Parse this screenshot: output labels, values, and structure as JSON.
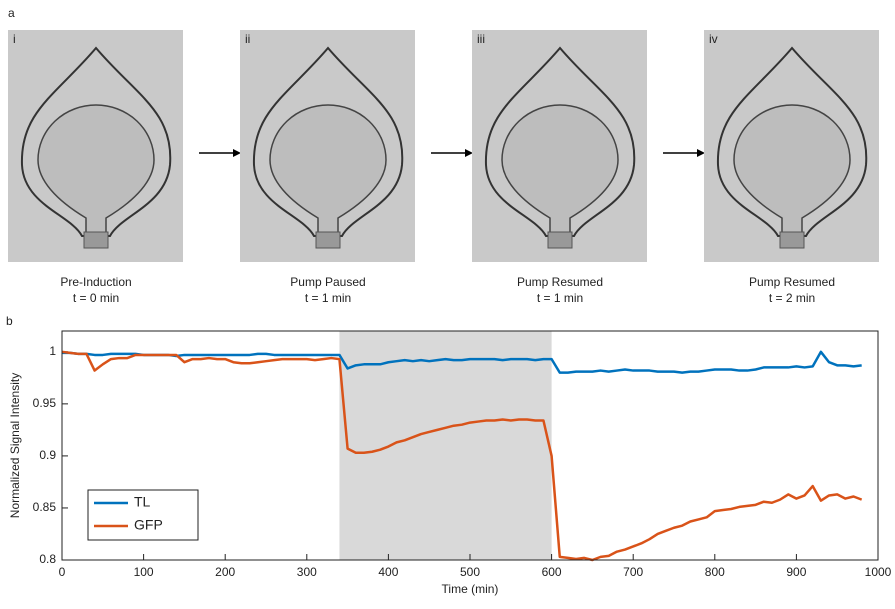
{
  "panel_a": {
    "label": "a",
    "panels": [
      {
        "numeral": "i",
        "caption": [
          "Pre-Induction",
          "t = 0 min"
        ]
      },
      {
        "numeral": "ii",
        "caption": [
          "Pump Paused",
          "t = 1 min"
        ]
      },
      {
        "numeral": "iii",
        "caption": [
          "Pump Resumed",
          "t = 1 min"
        ]
      },
      {
        "numeral": "iv",
        "caption": [
          "Pump Resumed",
          "t = 2 min"
        ]
      }
    ]
  },
  "chart_data": {
    "type": "line",
    "panel_label": "b",
    "xlabel": "Time (min)",
    "ylabel": "Normalized Signal Intensity",
    "x": [
      0,
      10,
      20,
      30,
      40,
      50,
      60,
      70,
      80,
      90,
      100,
      110,
      120,
      130,
      140,
      150,
      160,
      170,
      180,
      190,
      200,
      210,
      220,
      230,
      240,
      250,
      260,
      270,
      280,
      290,
      300,
      310,
      320,
      330,
      340,
      350,
      360,
      370,
      380,
      390,
      400,
      410,
      420,
      430,
      440,
      450,
      460,
      470,
      480,
      490,
      500,
      510,
      520,
      530,
      540,
      550,
      560,
      570,
      580,
      590,
      600,
      610,
      620,
      630,
      640,
      650,
      660,
      670,
      680,
      690,
      700,
      710,
      720,
      730,
      740,
      750,
      760,
      770,
      780,
      790,
      800,
      810,
      820,
      830,
      840,
      850,
      860,
      870,
      880,
      890,
      900,
      910,
      920,
      930,
      940,
      950,
      960,
      970,
      980
    ],
    "series": [
      {
        "name": "TL",
        "color": "#0072bd",
        "values": [
          0.999,
          0.999,
          0.998,
          0.998,
          0.997,
          0.997,
          0.998,
          0.998,
          0.998,
          0.998,
          0.997,
          0.997,
          0.997,
          0.997,
          0.996,
          0.997,
          0.997,
          0.997,
          0.997,
          0.997,
          0.997,
          0.997,
          0.997,
          0.997,
          0.998,
          0.998,
          0.997,
          0.997,
          0.997,
          0.997,
          0.997,
          0.997,
          0.997,
          0.997,
          0.997,
          0.984,
          0.987,
          0.988,
          0.988,
          0.988,
          0.99,
          0.991,
          0.992,
          0.991,
          0.992,
          0.991,
          0.992,
          0.993,
          0.992,
          0.992,
          0.993,
          0.993,
          0.993,
          0.993,
          0.992,
          0.993,
          0.993,
          0.993,
          0.992,
          0.993,
          0.993,
          0.98,
          0.98,
          0.981,
          0.981,
          0.981,
          0.982,
          0.981,
          0.982,
          0.983,
          0.982,
          0.982,
          0.982,
          0.981,
          0.981,
          0.981,
          0.98,
          0.981,
          0.981,
          0.982,
          0.983,
          0.983,
          0.983,
          0.982,
          0.982,
          0.983,
          0.985,
          0.985,
          0.985,
          0.985,
          0.986,
          0.985,
          0.986,
          1.0,
          0.99,
          0.987,
          0.987,
          0.986,
          0.987
        ]
      },
      {
        "name": "GFP",
        "color": "#d95319",
        "values": [
          1.0,
          0.999,
          0.998,
          0.998,
          0.982,
          0.988,
          0.993,
          0.994,
          0.994,
          0.997,
          0.997,
          0.997,
          0.997,
          0.997,
          0.997,
          0.99,
          0.993,
          0.993,
          0.994,
          0.993,
          0.993,
          0.99,
          0.989,
          0.989,
          0.99,
          0.991,
          0.992,
          0.993,
          0.993,
          0.993,
          0.993,
          0.992,
          0.993,
          0.994,
          0.993,
          0.907,
          0.903,
          0.903,
          0.904,
          0.906,
          0.909,
          0.913,
          0.915,
          0.918,
          0.921,
          0.923,
          0.925,
          0.927,
          0.929,
          0.93,
          0.932,
          0.933,
          0.934,
          0.934,
          0.935,
          0.934,
          0.935,
          0.935,
          0.934,
          0.934,
          0.9,
          0.803,
          0.802,
          0.801,
          0.802,
          0.8,
          0.803,
          0.804,
          0.808,
          0.81,
          0.813,
          0.816,
          0.82,
          0.825,
          0.828,
          0.831,
          0.833,
          0.837,
          0.839,
          0.841,
          0.847,
          0.848,
          0.849,
          0.851,
          0.852,
          0.853,
          0.856,
          0.855,
          0.858,
          0.863,
          0.859,
          0.862,
          0.871,
          0.857,
          0.862,
          0.863,
          0.859,
          0.861,
          0.858
        ]
      }
    ],
    "shaded_region": [
      340,
      600
    ],
    "shaded_color": "#d9d9d9",
    "xlim": [
      0,
      1000
    ],
    "xticks": [
      0,
      100,
      200,
      300,
      400,
      500,
      600,
      700,
      800,
      900,
      1000
    ],
    "ylim": [
      0.8,
      1.02
    ],
    "yticks": [
      0.8,
      0.85,
      0.9,
      0.95,
      1
    ],
    "legend": "lower left"
  }
}
